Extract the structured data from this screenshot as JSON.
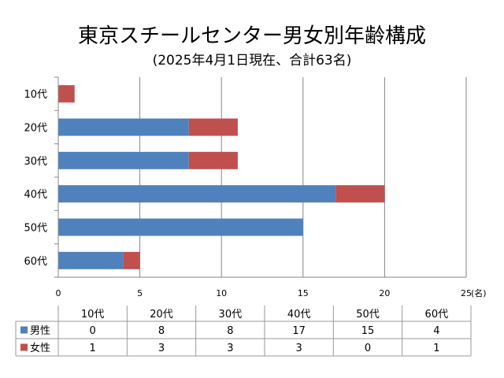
{
  "chart_data": {
    "type": "bar",
    "orientation": "horizontal",
    "stacked": true,
    "title": "東京スチールセンター男女別年齢構成",
    "subtitle": "(2025年4月1日現在、合計63名)",
    "unit_label": "(名)",
    "categories": [
      "60代",
      "50代",
      "40代",
      "30代",
      "20代",
      "10代"
    ],
    "series": [
      {
        "name": "男性",
        "color": "#4F81BD",
        "values": [
          4,
          15,
          17,
          8,
          8,
          0
        ]
      },
      {
        "name": "女性",
        "color": "#C0504D",
        "values": [
          1,
          0,
          3,
          3,
          3,
          1
        ]
      }
    ],
    "xlim": [
      0,
      25
    ],
    "xticks": [
      "0",
      "5",
      "10",
      "15",
      "20",
      "25"
    ],
    "grid": true,
    "legend": "data-table",
    "data_table": true
  }
}
